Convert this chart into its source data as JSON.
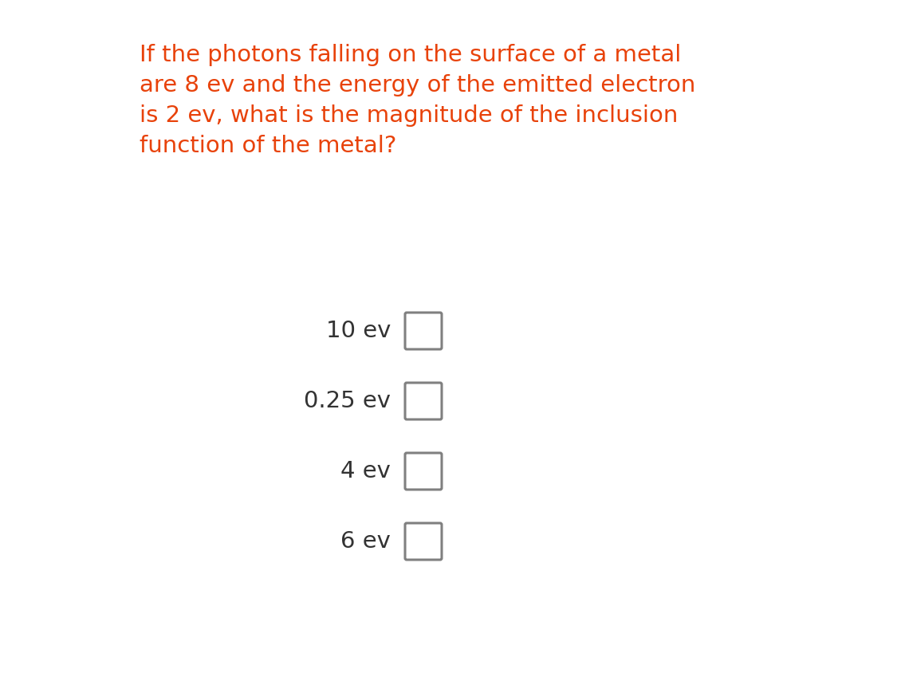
{
  "question": "If the photons falling on the surface of a metal\nare 8 ev and the energy of the emitted electron\nis 2 ev, what is the magnitude of the inclusion\nfunction of the metal?",
  "question_color": "#E8420A",
  "question_fontsize": 21,
  "options": [
    "10 ev",
    "0.25 ev",
    "4 ev",
    "6 ev"
  ],
  "option_text_color": "#333333",
  "option_fontsize": 21,
  "checkbox_color": "#808080",
  "background_color": "#ffffff",
  "fig_width": 11.25,
  "fig_height": 8.44,
  "dpi": 100
}
